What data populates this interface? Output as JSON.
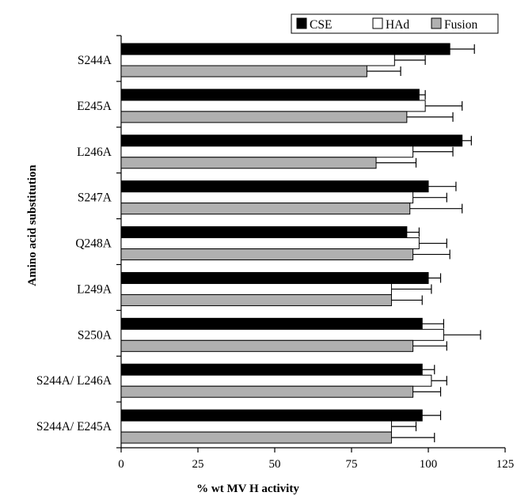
{
  "chart_data": {
    "type": "bar",
    "orientation": "horizontal",
    "xlabel": "% wt MV H activity",
    "ylabel": "Amino acid substitution",
    "xlim": [
      0,
      125
    ],
    "xticks": [
      0,
      25,
      50,
      75,
      100,
      125
    ],
    "categories": [
      "S244A",
      "E245A",
      "L246A",
      "S247A",
      "Q248A",
      "L249A",
      "S250A",
      "S244A/ L246A",
      "S244A/ E245A"
    ],
    "series": [
      {
        "name": "CSE",
        "color": "#000000",
        "values": [
          107,
          97,
          111,
          100,
          93,
          100,
          98,
          98,
          98
        ],
        "errors": [
          8,
          2,
          3,
          9,
          4,
          4,
          7,
          4,
          6
        ]
      },
      {
        "name": "HAd",
        "color": "#ffffff",
        "values": [
          89,
          99,
          95,
          95,
          97,
          88,
          105,
          101,
          88
        ],
        "errors": [
          10,
          12,
          13,
          11,
          9,
          13,
          12,
          5,
          8
        ]
      },
      {
        "name": "Fusion",
        "color": "#b0b0b0",
        "values": [
          80,
          93,
          83,
          94,
          95,
          88,
          95,
          95,
          88
        ],
        "errors": [
          11,
          15,
          13,
          17,
          12,
          10,
          11,
          9,
          14
        ]
      }
    ],
    "legend_position": "top-right",
    "grid": false
  }
}
